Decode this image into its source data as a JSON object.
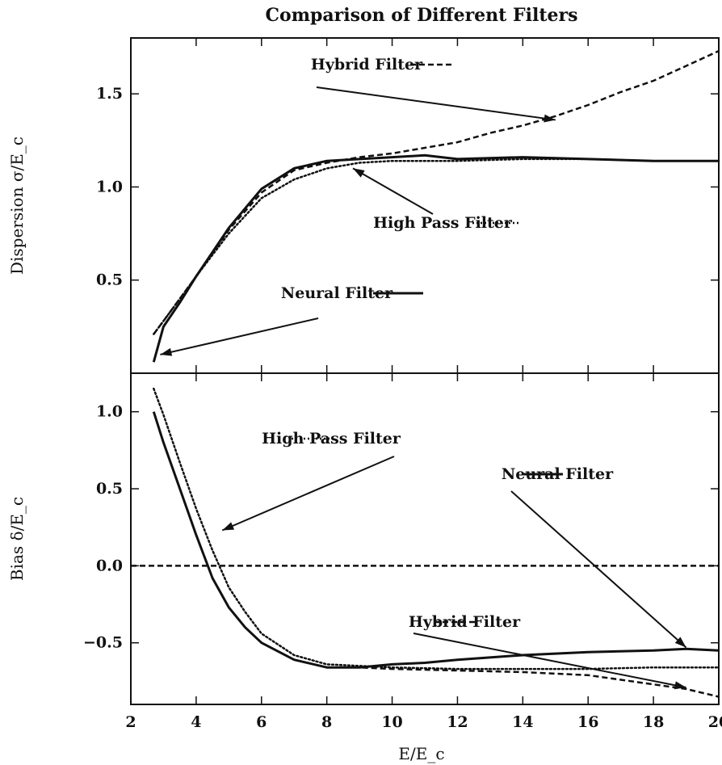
{
  "chart_data": [
    {
      "type": "line",
      "panel": "top",
      "title": "Comparison of Different Filters",
      "xlabel": "",
      "ylabel": "Dispersion σ/E_c",
      "xlim": [
        2,
        20
      ],
      "ylim": [
        0.0,
        1.8
      ],
      "y_ticks": [
        "0.5",
        "1.0",
        "1.5"
      ],
      "y_tick_values": [
        0.5,
        1.0,
        1.5
      ],
      "series": [
        {
          "name": "Neural Filter",
          "style": "solid",
          "x": [
            2.7,
            3.0,
            3.5,
            4.0,
            5.0,
            6.0,
            7.0,
            8.0,
            9.0,
            10.0,
            11.0,
            12.0,
            14.0,
            16.0,
            18.0,
            20.0
          ],
          "y": [
            0.06,
            0.25,
            0.38,
            0.52,
            0.78,
            0.99,
            1.1,
            1.14,
            1.15,
            1.16,
            1.17,
            1.15,
            1.16,
            1.15,
            1.14,
            1.14
          ]
        },
        {
          "name": "High Pass Filter",
          "style": "dotted",
          "x": [
            2.7,
            3.0,
            3.5,
            4.0,
            5.0,
            6.0,
            7.0,
            8.0,
            9.0,
            10.0,
            12.0,
            14.0,
            16.0,
            18.0,
            20.0
          ],
          "y": [
            0.21,
            0.28,
            0.4,
            0.52,
            0.75,
            0.94,
            1.04,
            1.1,
            1.13,
            1.14,
            1.14,
            1.15,
            1.15,
            1.14,
            1.14
          ]
        },
        {
          "name": "Hybrid Filter",
          "style": "dashed",
          "x": [
            2.7,
            3.0,
            4.0,
            5.0,
            6.0,
            7.0,
            8.0,
            9.0,
            10.0,
            11.0,
            12.0,
            13.0,
            14.0,
            15.0,
            16.0,
            17.0,
            18.0,
            19.0,
            20.0
          ],
          "y": [
            0.21,
            0.28,
            0.52,
            0.77,
            0.97,
            1.09,
            1.13,
            1.16,
            1.18,
            1.21,
            1.24,
            1.29,
            1.33,
            1.38,
            1.44,
            1.51,
            1.57,
            1.65,
            1.73
          ]
        }
      ],
      "annotations": [
        {
          "text": "Hybrid Filter",
          "style": "dashed",
          "arrow_to": [
            15.0,
            1.36
          ]
        },
        {
          "text": "High Pass Filter",
          "style": "dotted",
          "arrow_to": [
            8.8,
            1.1
          ]
        },
        {
          "text": "Neural Filter",
          "style": "solid",
          "arrow_to": [
            2.9,
            0.1
          ]
        }
      ]
    },
    {
      "type": "line",
      "panel": "bottom",
      "xlabel": "E/E_c",
      "ylabel": "Bias δ/E_c",
      "xlim": [
        2,
        20
      ],
      "ylim": [
        -0.9,
        1.25
      ],
      "x_ticks": [
        "2",
        "4",
        "6",
        "8",
        "10",
        "12",
        "14",
        "16",
        "18",
        "20"
      ],
      "x_tick_values": [
        2,
        4,
        6,
        8,
        10,
        12,
        14,
        16,
        18,
        20
      ],
      "y_ticks": [
        "1.0",
        "0.5",
        "0.0",
        "−0.5"
      ],
      "y_tick_values": [
        1.0,
        0.5,
        0.0,
        -0.5
      ],
      "series": [
        {
          "name": "Neural Filter",
          "style": "solid",
          "x": [
            2.7,
            3.0,
            3.5,
            4.0,
            4.5,
            5.0,
            5.5,
            6.0,
            7.0,
            8.0,
            9.0,
            10.0,
            11.0,
            12.0,
            14.0,
            16.0,
            18.0,
            19.0,
            20.0
          ],
          "y": [
            1.0,
            0.8,
            0.5,
            0.2,
            -0.08,
            -0.27,
            -0.4,
            -0.5,
            -0.61,
            -0.66,
            -0.66,
            -0.64,
            -0.63,
            -0.61,
            -0.58,
            -0.56,
            -0.55,
            -0.54,
            -0.55
          ]
        },
        {
          "name": "High Pass Filter",
          "style": "dotted",
          "x": [
            2.7,
            3.0,
            3.5,
            4.0,
            4.5,
            5.0,
            5.5,
            6.0,
            7.0,
            8.0,
            9.0,
            10.0,
            12.0,
            14.0,
            16.0,
            18.0,
            20.0
          ],
          "y": [
            1.15,
            0.98,
            0.67,
            0.37,
            0.1,
            -0.14,
            -0.3,
            -0.44,
            -0.58,
            -0.64,
            -0.65,
            -0.66,
            -0.67,
            -0.67,
            -0.67,
            -0.66,
            -0.66
          ]
        },
        {
          "name": "Hybrid Filter",
          "style": "dashed",
          "x": [
            2.0,
            20.0
          ],
          "y": [
            0.0,
            0.0
          ]
        },
        {
          "name": "Hybrid Filter",
          "style": "dashed",
          "x": [
            8.0,
            9.0,
            10.0,
            12.0,
            14.0,
            16.0,
            17.0,
            18.0,
            19.0,
            20.0
          ],
          "y": [
            -0.66,
            -0.66,
            -0.67,
            -0.68,
            -0.69,
            -0.71,
            -0.74,
            -0.77,
            -0.8,
            -0.85
          ]
        }
      ],
      "annotations": [
        {
          "text": "High Pass Filter",
          "style": "dotted",
          "arrow_to": [
            4.8,
            0.23
          ]
        },
        {
          "text": "Neural Filter",
          "style": "solid",
          "arrow_to": [
            19.0,
            -0.53
          ]
        },
        {
          "text": "Hybrid Filter",
          "style": "dashed",
          "arrow_to": [
            19.0,
            -0.79
          ]
        }
      ]
    }
  ]
}
